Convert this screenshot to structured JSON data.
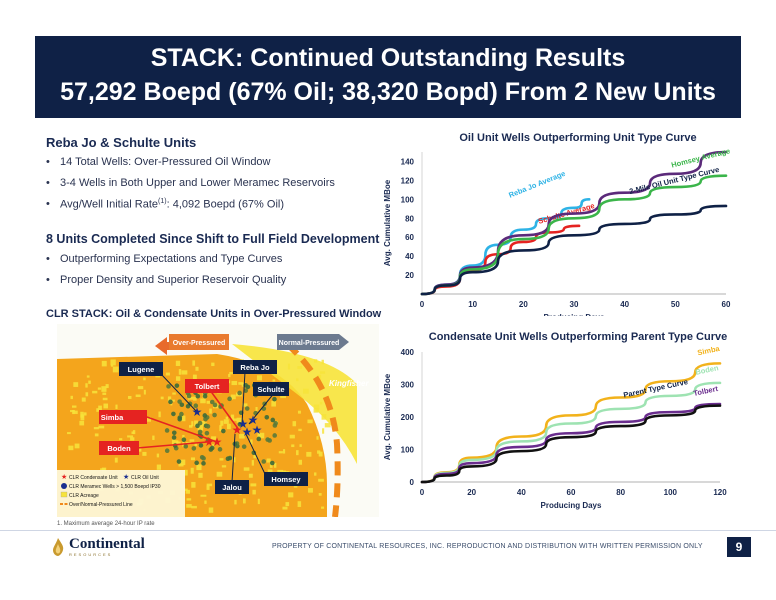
{
  "header": {
    "title_line1": "STACK: Continued Outstanding Results",
    "title_line2": "57,292 Boepd (67% Oil; 38,320 Bopd) From 2 New Units"
  },
  "section1": {
    "title": "Reba Jo & Schulte Units",
    "bullets": [
      "14 Total Wells: Over-Pressured Oil Window",
      "3-4 Wells in Both Upper and Lower Meramec Reservoirs",
      "Avg/Well Initial Rate",
      "(1)",
      ": 4,092 Boepd (67% Oil)"
    ]
  },
  "section2": {
    "title": "8 Units Completed Since Shift to Full Field Development",
    "bullets": [
      "Outperforming Expectations and Type Curves",
      "Proper Density and Superior Reservoir Quality"
    ]
  },
  "map": {
    "title": "CLR STACK: Oil & Condensate Units in Over-Pressured Window",
    "arrow_left": "Over-Pressured",
    "arrow_right": "Normal-Pressured",
    "county": "Kingfisher",
    "units": {
      "lugene": "Lugene",
      "rebajo": "Reba Jo",
      "tolbert": "Tolbert",
      "schulte": "Schulte",
      "simba": "Simba",
      "boden": "Boden",
      "homsey": "Homsey",
      "jalou": "Jalou"
    },
    "legend": {
      "condensate_unit": "CLR Condensate Unit",
      "oil_unit": "CLR Oil Unit",
      "meramec_wells": "CLR Meramec Wells > 1,500 Boepd IP30",
      "acreage": "CLR Acreage",
      "pressure_line": "Over/Normal-Pressured Line"
    },
    "colors": {
      "acreage": "#f7e33a",
      "over_pressured": "#f4a51c",
      "pressure_line": "#f08a1c",
      "label_red": "#e52321",
      "label_navy": "#0f2146"
    }
  },
  "footnote": "1. Maximum average 24-hour IP rate",
  "footer": {
    "logo_word": "Continental",
    "logo_sub": "RESOURCES",
    "text": "PROPERTY OF CONTINENTAL RESOURCES, INC. REPRODUCTION AND DISTRIBUTION WITH WRITTEN PERMISSION ONLY",
    "page": "9"
  },
  "chart_data": [
    {
      "type": "line",
      "title": "Oil Unit Wells Outperforming Unit Type Curve",
      "xlabel": "Producing Days",
      "ylabel": "Avg. Cumulative MBoe",
      "xlim": [
        0,
        60
      ],
      "ylim": [
        0,
        150
      ],
      "xticks": [
        0,
        10,
        20,
        30,
        40,
        50,
        60
      ],
      "yticks": [
        20,
        40,
        60,
        80,
        100,
        120,
        140
      ],
      "series": [
        {
          "name": "Reba Jo Average",
          "color": "#2eb3e6",
          "x": [
            0,
            5,
            10,
            15,
            20,
            25,
            30,
            33
          ],
          "y": [
            0,
            10,
            30,
            52,
            68,
            80,
            91,
            100
          ]
        },
        {
          "name": "Schulte Average",
          "color": "#e52321",
          "x": [
            0,
            5,
            10,
            15,
            20,
            25,
            31
          ],
          "y": [
            0,
            8,
            25,
            42,
            55,
            65,
            72
          ]
        },
        {
          "name": "Jalou Average",
          "color": "#5b2a7a",
          "x": [
            0,
            5,
            10,
            20,
            30,
            40,
            50,
            60
          ],
          "y": [
            0,
            10,
            28,
            62,
            85,
            107,
            127,
            150
          ]
        },
        {
          "name": "Homsey Average",
          "color": "#3bb54a",
          "x": [
            0,
            5,
            10,
            20,
            30,
            40,
            50,
            60
          ],
          "y": [
            0,
            9,
            26,
            58,
            80,
            100,
            113,
            125
          ]
        },
        {
          "name": "2-Mile Oil Unit Type Curve",
          "color": "#0f2146",
          "x": [
            0,
            5,
            10,
            20,
            30,
            40,
            50,
            60
          ],
          "y": [
            0,
            9,
            23,
            46,
            62,
            74,
            84,
            93
          ]
        }
      ]
    },
    {
      "type": "line",
      "title": "Condensate Unit Wells Outperforming Parent Type Curve",
      "xlabel": "Producing Days",
      "ylabel": "Avg. Cumulative MBoe",
      "xlim": [
        0,
        120
      ],
      "ylim": [
        0,
        400
      ],
      "xticks": [
        0,
        20,
        40,
        60,
        80,
        100,
        120
      ],
      "yticks": [
        0,
        100,
        200,
        300,
        400
      ],
      "series": [
        {
          "name": "Simba",
          "color": "#f2b21b",
          "x": [
            0,
            10,
            20,
            40,
            60,
            80,
            100,
            120
          ],
          "y": [
            0,
            30,
            75,
            140,
            205,
            260,
            310,
            365
          ]
        },
        {
          "name": "Boden",
          "color": "#9ee3b2",
          "x": [
            0,
            10,
            20,
            40,
            60,
            80,
            100,
            120
          ],
          "y": [
            0,
            28,
            68,
            125,
            180,
            225,
            265,
            305
          ]
        },
        {
          "name": "Tolbert",
          "color": "#6a2d8e",
          "x": [
            0,
            10,
            20,
            40,
            60,
            80,
            100,
            120
          ],
          "y": [
            0,
            25,
            58,
            108,
            150,
            185,
            215,
            240
          ]
        },
        {
          "name": "Parent Type Curve",
          "color": "#111111",
          "x": [
            0,
            10,
            20,
            40,
            60,
            80,
            100,
            120
          ],
          "y": [
            0,
            20,
            48,
            95,
            138,
            172,
            205,
            235
          ]
        }
      ]
    }
  ]
}
